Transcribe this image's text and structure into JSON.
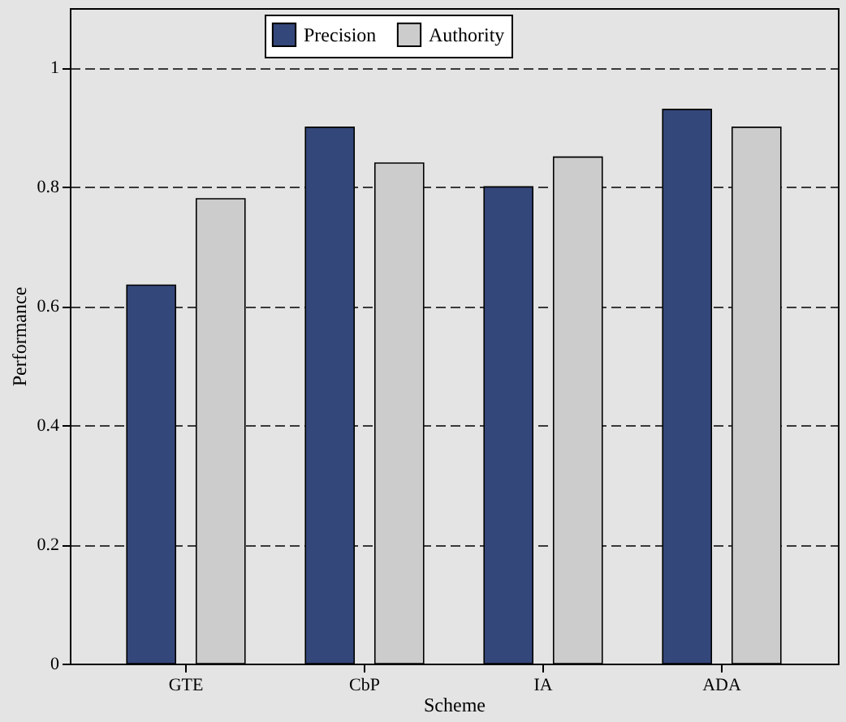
{
  "chart_data": {
    "type": "bar",
    "xlabel": "Scheme",
    "ylabel": "Performance",
    "categories": [
      "GTE",
      "CbP",
      "IA",
      "ADA"
    ],
    "series": [
      {
        "name": "Precision",
        "color": "#34477a",
        "values": [
          0.635,
          0.9,
          0.8,
          0.93
        ]
      },
      {
        "name": "Authority",
        "color": "#cccccc",
        "values": [
          0.78,
          0.84,
          0.85,
          0.9
        ]
      }
    ],
    "ylim": [
      0,
      1.1
    ],
    "yticks": [
      0,
      0.2,
      0.4,
      0.6,
      0.8,
      1
    ],
    "grid": "y",
    "legend": "top"
  }
}
